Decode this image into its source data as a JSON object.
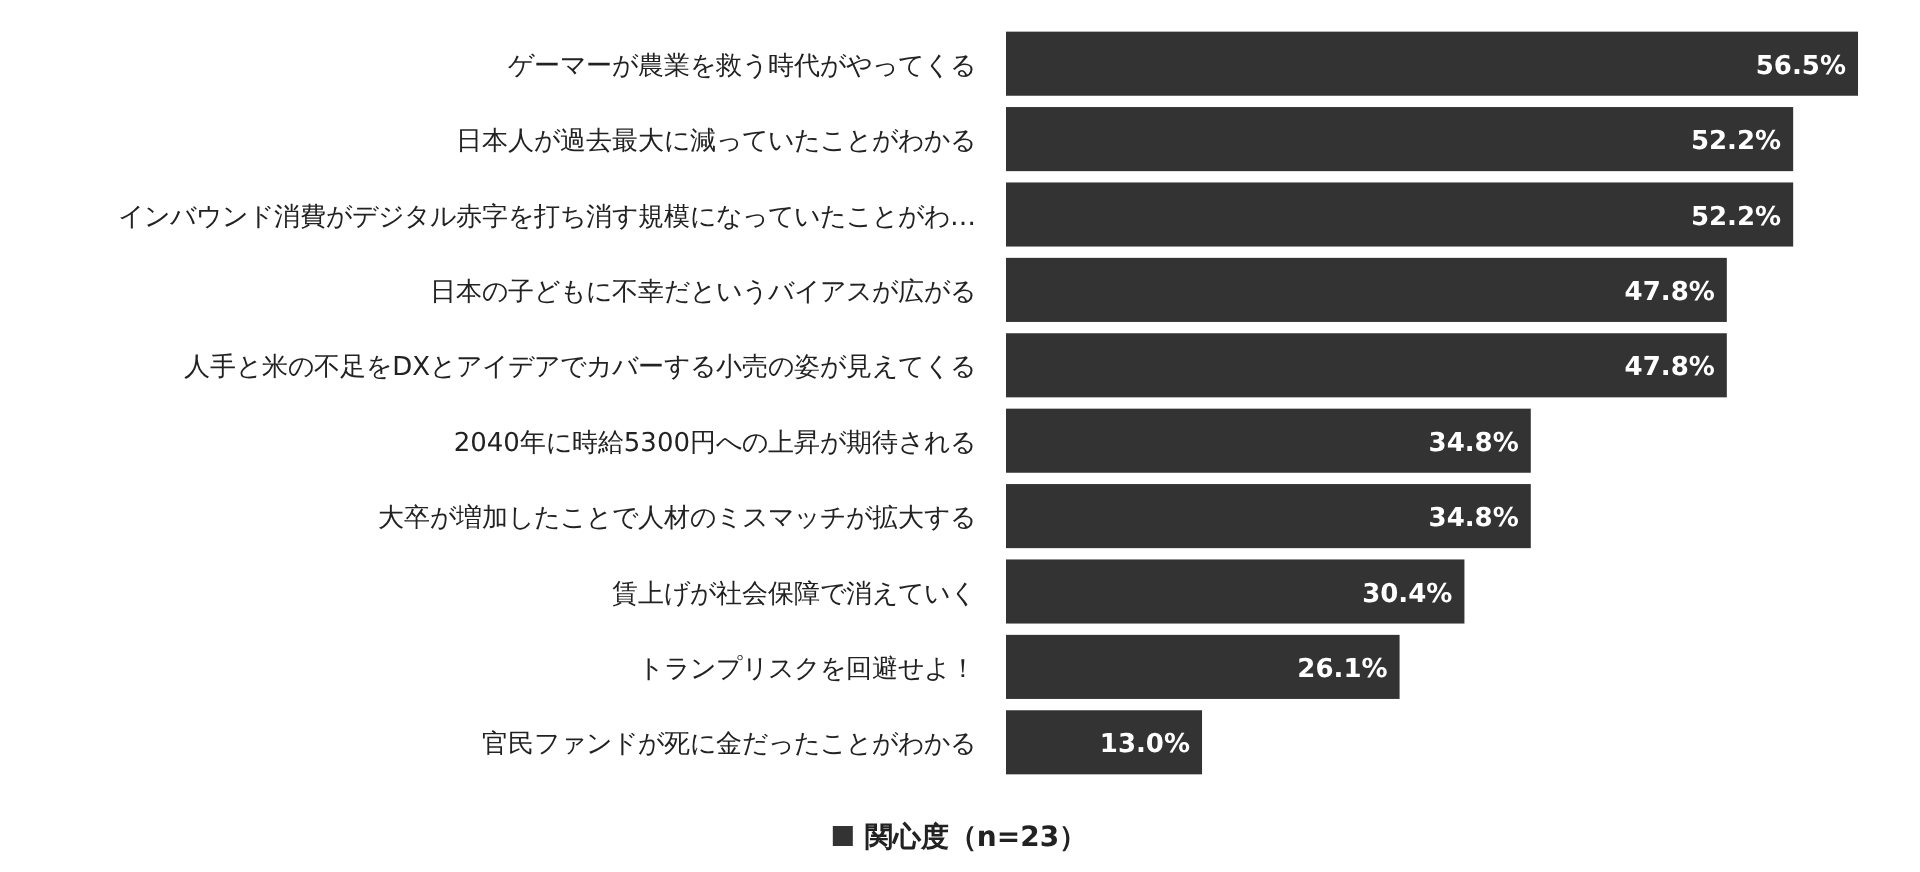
{
  "chart_data": {
    "type": "bar",
    "orientation": "horizontal",
    "legend": "bottom",
    "categories": [
      "ゲーマーが農業を救う時代がやってくる",
      "日本人が過去最大に減っていたことがわかる",
      "インバウンド消費がデジタル赤字を打ち消す規模になっていたことがわ…",
      "日本の子どもに不幸だというバイアスが広がる",
      "人手と米の不足をDXとアイデアでカバーする小売の姿が見えてくる",
      "2040年に時給5300円への上昇が期待される",
      "大卒が増加したことで人材のミスマッチが拡大する",
      "賃上げが社会保障で消えていく",
      "トランプリスクを回避せよ！",
      "官民ファンドが死に金だったことがわかる"
    ],
    "series": [
      {
        "name": "関心度（n=23）",
        "color": "#333333",
        "values": [
          56.5,
          52.2,
          52.2,
          47.8,
          47.8,
          34.8,
          34.8,
          30.4,
          26.1,
          13.0
        ],
        "value_labels": [
          "56.5%",
          "52.2%",
          "52.2%",
          "47.8%",
          "47.8%",
          "34.8%",
          "34.8%",
          "30.4%",
          "26.1%",
          "13.0%"
        ]
      }
    ]
  }
}
